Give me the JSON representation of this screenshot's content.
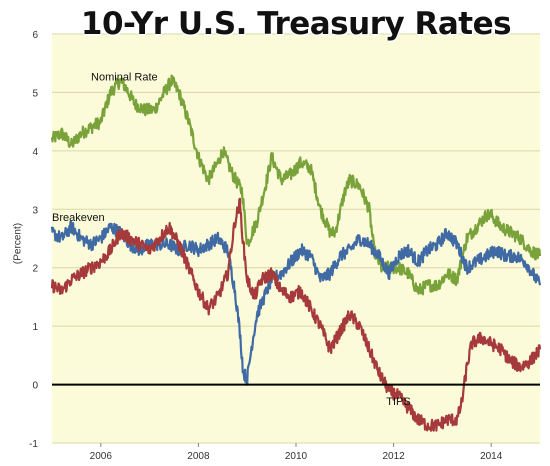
{
  "colors": {
    "background": "#fbfbd9",
    "grid": "#d8d8a8",
    "zero_line": "#000000",
    "nominal": "#7aa23a",
    "breakeven": "#3f6aa4",
    "tips": "#a63a3a"
  },
  "chart_data": {
    "type": "line",
    "title": "10-Yr U.S. Treasury Rates",
    "ylabel": "(Percent)",
    "xlabel": "",
    "xlim": [
      2005.0,
      2015.0
    ],
    "ylim": [
      -1,
      6
    ],
    "grid": true,
    "x_ticks": [
      {
        "value": 2006,
        "label": "2006"
      },
      {
        "value": 2008,
        "label": "2008"
      },
      {
        "value": 2010,
        "label": "2010"
      },
      {
        "value": 2012,
        "label": "2012"
      },
      {
        "value": 2014,
        "label": "2014"
      }
    ],
    "y_ticks": [
      {
        "value": -1,
        "label": "-1"
      },
      {
        "value": 0,
        "label": "0"
      },
      {
        "value": 1,
        "label": "1"
      },
      {
        "value": 2,
        "label": "2"
      },
      {
        "value": 3,
        "label": "3"
      },
      {
        "value": 4,
        "label": "4"
      },
      {
        "value": 5,
        "label": "5"
      },
      {
        "value": 6,
        "label": "6"
      }
    ],
    "series": [
      {
        "name": "Nominal Rate",
        "color": "#7aa23a",
        "label_pos": [
          2005.8,
          5.2
        ],
        "x": [
          2005.0,
          2005.2,
          2005.4,
          2005.6,
          2005.8,
          2006.0,
          2006.2,
          2006.4,
          2006.5,
          2006.7,
          2006.9,
          2007.1,
          2007.3,
          2007.45,
          2007.6,
          2007.8,
          2008.0,
          2008.2,
          2008.4,
          2008.5,
          2008.7,
          2008.9,
          2009.0,
          2009.2,
          2009.4,
          2009.5,
          2009.7,
          2009.9,
          2010.1,
          2010.3,
          2010.5,
          2010.7,
          2010.8,
          2011.0,
          2011.1,
          2011.3,
          2011.5,
          2011.6,
          2011.75,
          2011.9,
          2012.1,
          2012.3,
          2012.5,
          2012.7,
          2012.9,
          2013.1,
          2013.3,
          2013.5,
          2013.7,
          2013.9,
          2014.0,
          2014.2,
          2014.4,
          2014.6,
          2014.8,
          2015.0
        ],
        "values": [
          4.2,
          4.3,
          4.1,
          4.3,
          4.4,
          4.5,
          5.0,
          5.2,
          5.1,
          4.8,
          4.7,
          4.7,
          5.0,
          5.2,
          5.0,
          4.5,
          3.9,
          3.5,
          3.8,
          4.0,
          3.6,
          3.3,
          2.4,
          2.8,
          3.5,
          3.9,
          3.5,
          3.6,
          3.8,
          3.7,
          3.0,
          2.6,
          2.6,
          3.3,
          3.5,
          3.4,
          3.0,
          2.3,
          2.0,
          2.0,
          2.0,
          1.9,
          1.6,
          1.7,
          1.7,
          1.9,
          1.8,
          2.5,
          2.7,
          2.9,
          2.9,
          2.7,
          2.6,
          2.5,
          2.3,
          2.2
        ]
      },
      {
        "name": "Breakeven",
        "color": "#3f6aa4",
        "label_pos": [
          2005.0,
          2.8
        ],
        "x": [
          2005.0,
          2005.2,
          2005.4,
          2005.6,
          2005.8,
          2006.0,
          2006.2,
          2006.4,
          2006.6,
          2006.8,
          2007.0,
          2007.2,
          2007.4,
          2007.6,
          2007.8,
          2008.0,
          2008.2,
          2008.4,
          2008.6,
          2008.75,
          2008.85,
          2008.92,
          2009.0,
          2009.1,
          2009.2,
          2009.35,
          2009.5,
          2009.7,
          2009.9,
          2010.1,
          2010.3,
          2010.5,
          2010.7,
          2010.9,
          2011.1,
          2011.3,
          2011.5,
          2011.7,
          2011.9,
          2012.1,
          2012.3,
          2012.5,
          2012.7,
          2012.9,
          2013.1,
          2013.3,
          2013.5,
          2013.7,
          2013.9,
          2014.1,
          2014.3,
          2014.5,
          2014.7,
          2014.85,
          2015.0
        ],
        "values": [
          2.6,
          2.5,
          2.7,
          2.5,
          2.4,
          2.5,
          2.7,
          2.6,
          2.4,
          2.3,
          2.4,
          2.4,
          2.4,
          2.3,
          2.4,
          2.3,
          2.4,
          2.5,
          2.3,
          1.6,
          0.9,
          0.2,
          0.1,
          0.7,
          1.2,
          1.5,
          1.8,
          1.9,
          2.1,
          2.3,
          2.2,
          1.8,
          1.9,
          2.2,
          2.3,
          2.5,
          2.4,
          2.2,
          1.9,
          2.2,
          2.3,
          2.1,
          2.3,
          2.4,
          2.6,
          2.4,
          2.0,
          2.1,
          2.2,
          2.3,
          2.2,
          2.2,
          2.1,
          1.9,
          1.7
        ]
      },
      {
        "name": "TIPS",
        "color": "#a63a3a",
        "label_pos": [
          2011.85,
          -0.35
        ],
        "x": [
          2005.0,
          2005.2,
          2005.4,
          2005.6,
          2005.8,
          2006.0,
          2006.2,
          2006.4,
          2006.6,
          2006.8,
          2007.0,
          2007.2,
          2007.4,
          2007.6,
          2007.8,
          2008.0,
          2008.2,
          2008.4,
          2008.6,
          2008.75,
          2008.85,
          2008.92,
          2009.0,
          2009.15,
          2009.3,
          2009.5,
          2009.7,
          2009.9,
          2010.1,
          2010.3,
          2010.5,
          2010.7,
          2010.9,
          2011.1,
          2011.3,
          2011.5,
          2011.7,
          2011.9,
          2012.1,
          2012.3,
          2012.5,
          2012.7,
          2012.9,
          2013.1,
          2013.3,
          2013.4,
          2013.5,
          2013.6,
          2013.8,
          2014.0,
          2014.2,
          2014.4,
          2014.6,
          2014.8,
          2015.0
        ],
        "values": [
          1.7,
          1.6,
          1.8,
          1.9,
          2.0,
          2.1,
          2.3,
          2.6,
          2.5,
          2.4,
          2.3,
          2.5,
          2.7,
          2.4,
          2.0,
          1.6,
          1.3,
          1.5,
          1.9,
          2.8,
          3.1,
          2.4,
          1.8,
          1.5,
          1.8,
          1.9,
          1.6,
          1.5,
          1.6,
          1.3,
          1.0,
          0.6,
          0.9,
          1.2,
          1.0,
          0.6,
          0.2,
          -0.1,
          -0.2,
          -0.4,
          -0.6,
          -0.7,
          -0.7,
          -0.6,
          -0.6,
          -0.3,
          0.3,
          0.7,
          0.8,
          0.7,
          0.6,
          0.4,
          0.3,
          0.4,
          0.6
        ]
      }
    ]
  }
}
